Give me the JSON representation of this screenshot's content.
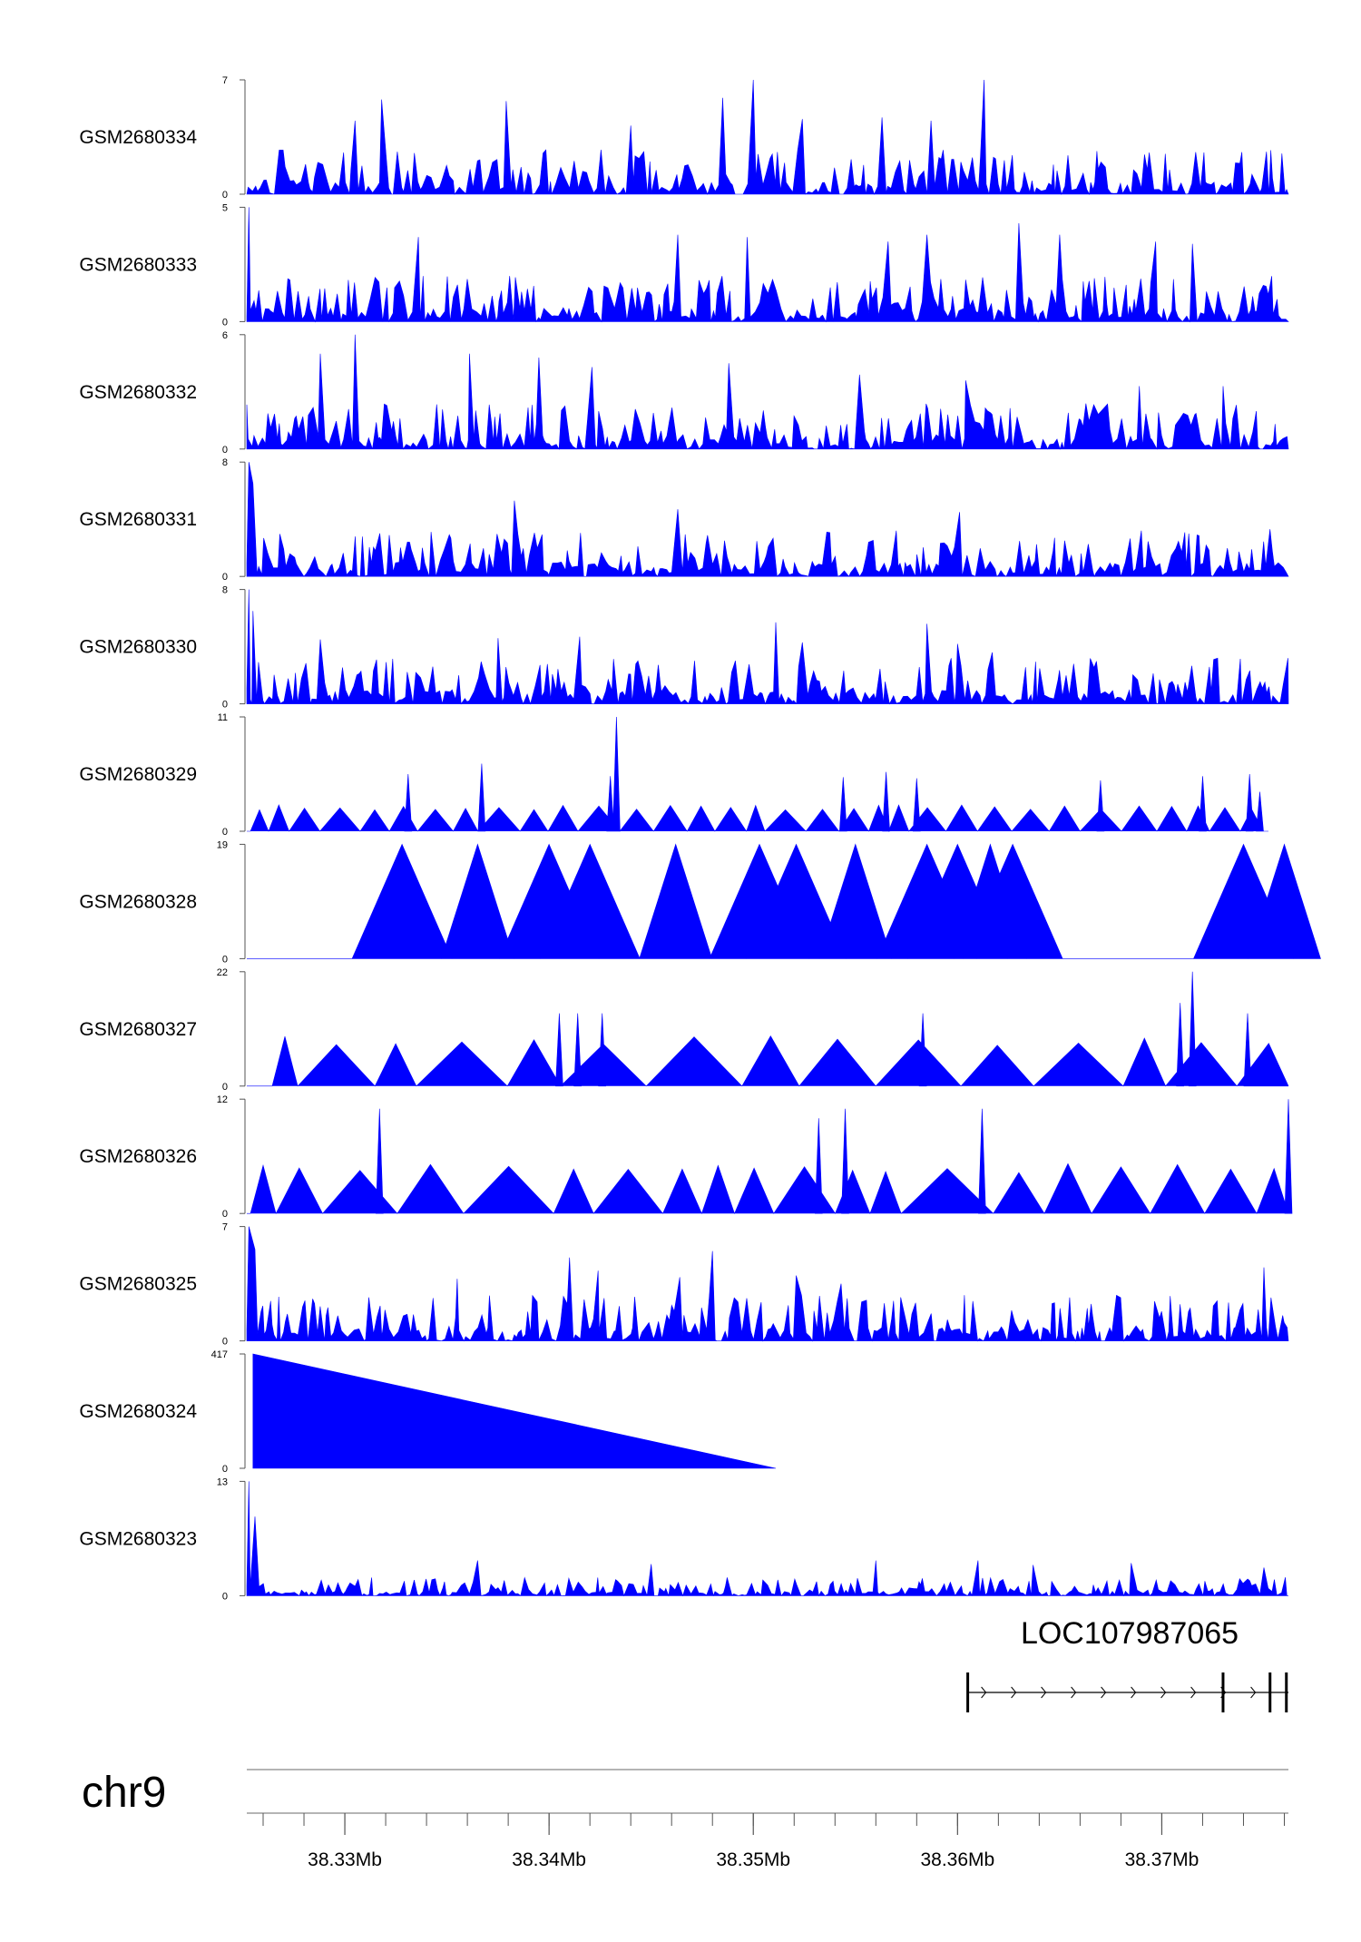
{
  "chart_data": {
    "type": "area",
    "chromosome": "chr9",
    "xlim_mb": [
      38.3252,
      38.3762
    ],
    "series_color": "#0000ff",
    "tracks": [
      {
        "name": "GSM2680334",
        "ymax": 7,
        "ymin": 0,
        "pattern": "dense",
        "seed": 11,
        "peaks": [
          [
            38.3305,
            4.5
          ],
          [
            38.3318,
            5.8
          ],
          [
            38.3379,
            5.7
          ],
          [
            38.344,
            4.2
          ],
          [
            38.3485,
            5.9
          ],
          [
            38.35,
            7
          ],
          [
            38.3524,
            4.6
          ],
          [
            38.3563,
            4.7
          ],
          [
            38.3587,
            4.5
          ],
          [
            38.3613,
            7
          ]
        ]
      },
      {
        "name": "GSM2680333",
        "ymax": 5,
        "ymin": 0,
        "pattern": "dense",
        "seed": 23,
        "peaks": [
          [
            38.3253,
            5
          ],
          [
            38.3336,
            3.7
          ],
          [
            38.3463,
            3.8
          ],
          [
            38.3497,
            3.7
          ],
          [
            38.3566,
            3.5
          ],
          [
            38.3585,
            3.8
          ],
          [
            38.363,
            4.3
          ],
          [
            38.365,
            3.8
          ],
          [
            38.3697,
            3.5
          ],
          [
            38.3715,
            3.4
          ]
        ]
      },
      {
        "name": "GSM2680332",
        "ymax": 6,
        "ymin": 0,
        "pattern": "dense",
        "seed": 37,
        "peaks": [
          [
            38.3288,
            5.0
          ],
          [
            38.3305,
            6
          ],
          [
            38.3361,
            5.0
          ],
          [
            38.3395,
            4.8
          ],
          [
            38.3421,
            4.3
          ],
          [
            38.3488,
            4.5
          ],
          [
            38.3552,
            3.9
          ],
          [
            38.3604,
            3.6
          ],
          [
            38.3689,
            3.3
          ],
          [
            38.373,
            3.3
          ]
        ]
      },
      {
        "name": "GSM2680331",
        "ymax": 8,
        "ymin": 0,
        "pattern": "dense",
        "seed": 41,
        "peaks": [
          [
            38.3253,
            8
          ],
          [
            38.3255,
            6.5
          ],
          [
            38.3383,
            5.3
          ],
          [
            38.3463,
            4.7
          ],
          [
            38.357,
            3.2
          ],
          [
            38.3601,
            4.5
          ],
          [
            38.369,
            3.2
          ],
          [
            38.3753,
            3.3
          ]
        ]
      },
      {
        "name": "GSM2680330",
        "ymax": 8,
        "ymin": 0,
        "pattern": "dense",
        "seed": 53,
        "peaks": [
          [
            38.3253,
            8
          ],
          [
            38.3255,
            6.5
          ],
          [
            38.3288,
            4.5
          ],
          [
            38.3375,
            4.6
          ],
          [
            38.3415,
            4.7
          ],
          [
            38.3511,
            5.7
          ],
          [
            38.3524,
            4.3
          ],
          [
            38.3585,
            5.6
          ],
          [
            38.36,
            4.2
          ],
          [
            38.3617,
            3.6
          ]
        ]
      },
      {
        "name": "GSM2680329",
        "ymax": 11,
        "ymin": 0,
        "pattern": "spiky",
        "seed": 61,
        "peaks": [
          [
            38.3331,
            5.5
          ],
          [
            38.3367,
            6.5
          ],
          [
            38.343,
            5.3
          ],
          [
            38.3433,
            11
          ],
          [
            38.3544,
            5.2
          ],
          [
            38.3565,
            5.7
          ],
          [
            38.358,
            5.1
          ],
          [
            38.367,
            4.9
          ],
          [
            38.372,
            5.3
          ],
          [
            38.3743,
            5.5
          ],
          [
            38.3748,
            3.8
          ]
        ]
      },
      {
        "name": "GSM2680328",
        "ymax": 19,
        "ymin": 0,
        "pattern": "triangles",
        "seed": 71,
        "peaks": [
          [
            38.3328,
            19
          ],
          [
            38.3365,
            19
          ],
          [
            38.34,
            19
          ],
          [
            38.342,
            19
          ],
          [
            38.3462,
            19
          ],
          [
            38.3503,
            19
          ],
          [
            38.3521,
            19
          ],
          [
            38.355,
            19
          ],
          [
            38.3585,
            19
          ],
          [
            38.36,
            19
          ],
          [
            38.3616,
            19
          ],
          [
            38.3627,
            19
          ],
          [
            38.374,
            19
          ],
          [
            38.376,
            19
          ]
        ]
      },
      {
        "name": "GSM2680327",
        "ymax": 22,
        "ymin": 0,
        "pattern": "triangles",
        "seed": 83,
        "peaks": [
          [
            38.3405,
            14
          ],
          [
            38.3414,
            14
          ],
          [
            38.3426,
            14
          ],
          [
            38.3583,
            14
          ],
          [
            38.3709,
            16
          ],
          [
            38.3715,
            22
          ],
          [
            38.3742,
            14
          ]
        ]
      },
      {
        "name": "GSM2680326",
        "ymax": 12,
        "ymin": 0,
        "pattern": "triangles",
        "seed": 97,
        "peaks": [
          [
            38.3317,
            11
          ],
          [
            38.3532,
            10
          ],
          [
            38.3545,
            11
          ],
          [
            38.3612,
            11
          ],
          [
            38.3762,
            12
          ]
        ]
      },
      {
        "name": "GSM2680325",
        "ymax": 7,
        "ymin": 0,
        "pattern": "dense",
        "seed": 103,
        "peaks": [
          [
            38.3253,
            7
          ],
          [
            38.3256,
            5.6
          ],
          [
            38.3355,
            3.8
          ],
          [
            38.341,
            5.1
          ],
          [
            38.3424,
            4.3
          ],
          [
            38.3464,
            3.9
          ],
          [
            38.348,
            5.5
          ],
          [
            38.3521,
            4.0
          ],
          [
            38.3543,
            3.5
          ],
          [
            38.375,
            4.5
          ]
        ]
      },
      {
        "name": "GSM2680324",
        "ymax": 417,
        "ymin": 0,
        "pattern": "ramp",
        "seed": 0,
        "peaks": [
          [
            38.3255,
            417
          ],
          [
            38.3511,
            0
          ]
        ]
      },
      {
        "name": "GSM2680323",
        "ymax": 13,
        "ymin": 0,
        "pattern": "sparse",
        "seed": 113,
        "peaks": [
          [
            38.3253,
            13
          ],
          [
            38.3256,
            9
          ],
          [
            38.3365,
            4.0
          ],
          [
            38.345,
            3.6
          ],
          [
            38.356,
            4.0
          ],
          [
            38.361,
            4.0
          ],
          [
            38.3637,
            3.5
          ],
          [
            38.3685,
            3.7
          ],
          [
            38.375,
            3.2
          ]
        ]
      }
    ],
    "gene": {
      "name": "LOC107987065",
      "strand": "+",
      "start_mb": 38.3605,
      "end_mb": 38.3762,
      "exons_mb": [
        38.3605,
        38.373,
        38.3753,
        38.3761
      ]
    },
    "axis": {
      "ticks_mb": [
        38.33,
        38.34,
        38.35,
        38.36,
        38.37
      ],
      "tick_labels": [
        "38.33Mb",
        "38.34Mb",
        "38.35Mb",
        "38.36Mb",
        "38.37Mb"
      ],
      "minor_step_mb": 0.002
    }
  }
}
